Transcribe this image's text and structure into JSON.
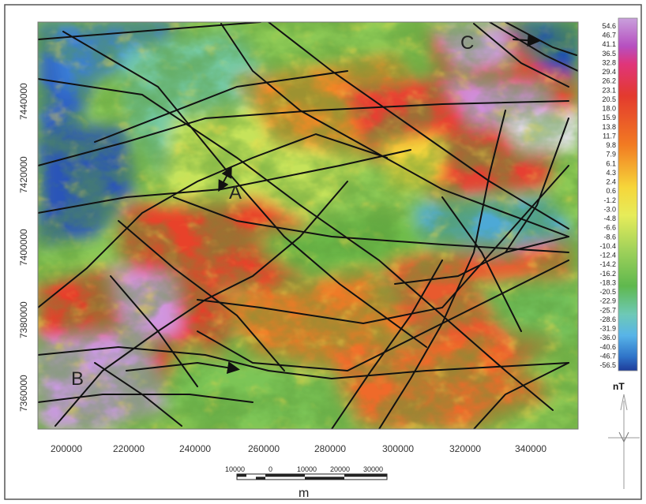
{
  "map": {
    "y_axis": {
      "ticks": [
        "7440000",
        "7420000",
        "7400000",
        "7380000",
        "7360000"
      ]
    },
    "x_axis": {
      "ticks": [
        "200000",
        "220000",
        "240000",
        "260000",
        "280000",
        "300000",
        "320000",
        "340000"
      ]
    },
    "colorbar": {
      "unit": "nT",
      "ticks": [
        "54.6",
        "46.7",
        "41.1",
        "36.5",
        "32.8",
        "29.4",
        "26.2",
        "23.1",
        "20.5",
        "18.0",
        "15.9",
        "13.8",
        "11.7",
        "9.8",
        "7.9",
        "6.1",
        "4.3",
        "2.4",
        "0.6",
        "-1.2",
        "-3.0",
        "-4.8",
        "-6.6",
        "-8.6",
        "-10.4",
        "-12.4",
        "-14.2",
        "-16.2",
        "-18.3",
        "-20.5",
        "-22.9",
        "-25.7",
        "-28.6",
        "-31.9",
        "-36.0",
        "-40.6",
        "-46.7",
        "-56.5"
      ],
      "colors": {
        "high": "#c9a0dc",
        "upper": "#e03030",
        "mid": "#f5e040",
        "lower": "#6dbb4a",
        "low": "#1f4fb0"
      }
    },
    "letters": {
      "a": "A",
      "b": "B",
      "c": "C"
    },
    "scale_bar": {
      "labels": [
        "10000",
        "0",
        "10000",
        "20000",
        "30000"
      ],
      "unit": "m"
    }
  }
}
